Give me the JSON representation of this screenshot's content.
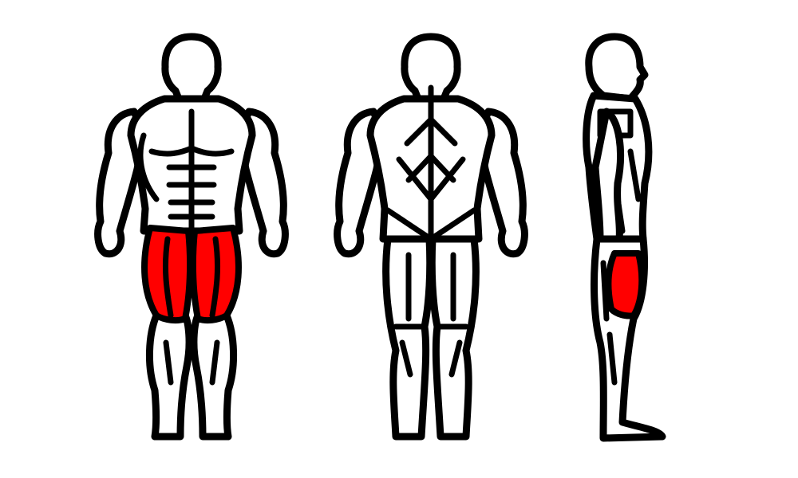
{
  "colors": {
    "background": "#ffffff",
    "outline": "#000000",
    "body_fill": "#ffffff",
    "highlight": "#ff0000"
  }
}
